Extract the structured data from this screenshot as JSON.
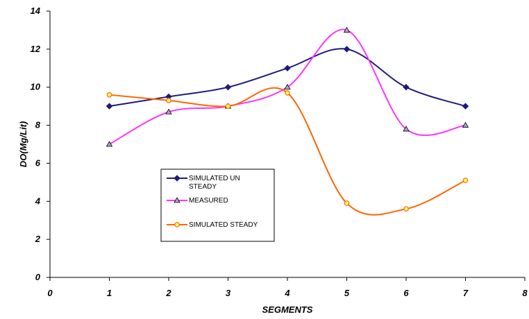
{
  "chart_data": {
    "type": "line",
    "x": [
      1,
      2,
      3,
      4,
      5,
      6,
      7
    ],
    "xlabel": "SEGMENTS",
    "ylabel": "DO(Mg/Lit)",
    "xlim": [
      0,
      8
    ],
    "ylim": [
      0,
      14
    ],
    "xticks": [
      "0",
      "1",
      "2",
      "3",
      "4",
      "5",
      "6",
      "7",
      "8"
    ],
    "yticks": [
      "0",
      "2",
      "4",
      "6",
      "8",
      "10",
      "12",
      "14"
    ],
    "grid": false,
    "legend_placement": "center-left",
    "series": [
      {
        "name_lines": [
          "SIMULATED UN",
          "STEADY"
        ],
        "values": [
          9,
          9.5,
          10,
          11,
          12,
          10,
          9
        ],
        "color": "#1f1a7a",
        "marker": "diamond"
      },
      {
        "name_lines": [
          "MEASURED"
        ],
        "values": [
          7,
          8.7,
          9,
          10,
          13,
          7.8,
          8
        ],
        "color": "#ff33ff",
        "marker": "triangle"
      },
      {
        "name_lines": [
          "SIMULATED STEADY"
        ],
        "values": [
          9.6,
          9.3,
          9,
          9.7,
          3.9,
          3.6,
          5.1
        ],
        "color": "#ff6600",
        "marker": "circle"
      }
    ]
  }
}
